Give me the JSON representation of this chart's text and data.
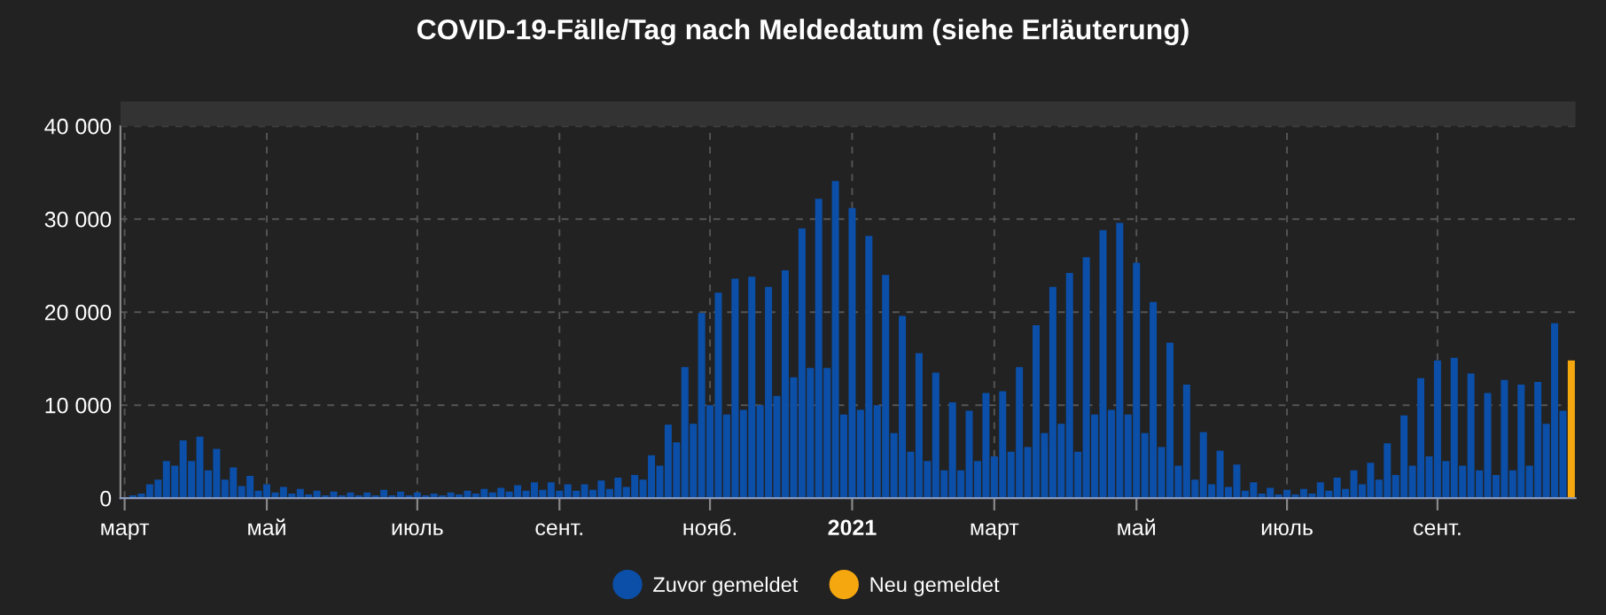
{
  "chart_data": {
    "type": "bar",
    "title": "COVID-19-Fälle/Tag nach Meldedatum (siehe Erläuterung)",
    "categories": [
      "март",
      null,
      null,
      null,
      null,
      null,
      null,
      null,
      null,
      null,
      null,
      null,
      null,
      null,
      null,
      null,
      null,
      "май",
      null,
      null,
      null,
      null,
      null,
      null,
      null,
      null,
      null,
      null,
      null,
      null,
      null,
      null,
      null,
      null,
      null,
      "июль",
      null,
      null,
      null,
      null,
      null,
      null,
      null,
      null,
      null,
      null,
      null,
      null,
      null,
      null,
      null,
      null,
      "сент.",
      null,
      null,
      null,
      null,
      null,
      null,
      null,
      null,
      null,
      null,
      null,
      null,
      null,
      null,
      null,
      null,
      null,
      "нояб.",
      null,
      null,
      null,
      null,
      null,
      null,
      null,
      null,
      null,
      null,
      null,
      null,
      null,
      null,
      null,
      null,
      "2021",
      null,
      null,
      null,
      null,
      null,
      null,
      null,
      null,
      null,
      null,
      null,
      null,
      null,
      null,
      null,
      null,
      "март",
      null,
      null,
      null,
      null,
      null,
      null,
      null,
      null,
      null,
      null,
      null,
      null,
      null,
      null,
      null,
      null,
      "май",
      null,
      null,
      null,
      null,
      null,
      null,
      null,
      null,
      null,
      null,
      null,
      null,
      null,
      null,
      null,
      null,
      null,
      "июль",
      null,
      null,
      null,
      null,
      null,
      null,
      null,
      null,
      null,
      null,
      null,
      null,
      null,
      null,
      null,
      null,
      null,
      "сент.",
      null,
      null,
      null,
      null,
      null,
      null,
      null,
      null,
      null,
      null,
      null,
      null,
      null,
      null,
      null,
      null
    ],
    "ylim": [
      0,
      40000
    ],
    "yticks": [
      0,
      {
        "value": 10000,
        "label": "10 000"
      },
      {
        "value": 20000,
        "label": "20 000"
      },
      {
        "value": 30000,
        "label": "30 000"
      },
      {
        "value": 40000,
        "label": "40 000"
      }
    ],
    "grid": true,
    "legend": "bottom",
    "series": [
      {
        "name": "Zuvor gemeldet",
        "color": "#0b4fa8",
        "values": [
          100,
          300,
          500,
          1500,
          2000,
          4000,
          3500,
          6200,
          4000,
          6600,
          3000,
          5300,
          2000,
          3300,
          1300,
          2400,
          800,
          1500,
          600,
          1200,
          500,
          1000,
          400,
          800,
          300,
          700,
          300,
          600,
          300,
          600,
          300,
          900,
          300,
          700,
          300,
          600,
          300,
          500,
          300,
          600,
          400,
          800,
          500,
          1000,
          600,
          1100,
          700,
          1400,
          800,
          1700,
          900,
          1700,
          800,
          1500,
          800,
          1500,
          900,
          1900,
          1000,
          2200,
          1200,
          2500,
          2000,
          4600,
          3500,
          7900,
          6000,
          14100,
          8000,
          19900,
          10000,
          22100,
          9000,
          23600,
          9500,
          23800,
          10000,
          22700,
          11000,
          24500,
          13000,
          29000,
          14000,
          32200,
          14000,
          34100,
          9000,
          31200,
          9500,
          28200,
          10000,
          24000,
          7000,
          19600,
          5000,
          15600,
          4000,
          13500,
          3000,
          10300,
          3000,
          9400,
          4000,
          11300,
          4500,
          11500,
          5000,
          14100,
          5500,
          18600,
          7000,
          22700,
          8000,
          24200,
          5000,
          25900,
          9000,
          28800,
          9500,
          29600,
          9000,
          25300,
          7000,
          21100,
          5500,
          16700,
          3500,
          12200,
          2000,
          7100,
          1500,
          5100,
          1200,
          3600,
          800,
          1700,
          500,
          1100,
          400,
          900,
          400,
          1000,
          500,
          1700,
          800,
          2200,
          1000,
          3000,
          1500,
          3800,
          2000,
          5900,
          2500,
          8900,
          3500,
          12900,
          4500,
          14800,
          4000,
          15100,
          3500,
          13400,
          3000,
          11300,
          2500,
          12700,
          3000,
          12200,
          3500,
          12500,
          8000,
          18800,
          9400,
          null
        ]
      },
      {
        "name": "Neu gemeldet",
        "color": "#f5a70f",
        "values": [
          null,
          null,
          null,
          null,
          null,
          null,
          null,
          null,
          null,
          null,
          null,
          null,
          null,
          null,
          null,
          null,
          null,
          null,
          null,
          null,
          null,
          null,
          null,
          null,
          null,
          null,
          null,
          null,
          null,
          null,
          null,
          null,
          null,
          null,
          null,
          null,
          null,
          null,
          null,
          null,
          null,
          null,
          null,
          null,
          null,
          null,
          null,
          null,
          null,
          null,
          null,
          null,
          null,
          null,
          null,
          null,
          null,
          null,
          null,
          null,
          null,
          null,
          null,
          null,
          null,
          null,
          null,
          null,
          null,
          null,
          null,
          null,
          null,
          null,
          null,
          null,
          null,
          null,
          null,
          null,
          null,
          null,
          null,
          null,
          null,
          null,
          null,
          null,
          null,
          null,
          null,
          null,
          null,
          null,
          null,
          null,
          null,
          null,
          null,
          null,
          null,
          null,
          null,
          null,
          null,
          null,
          null,
          null,
          null,
          null,
          null,
          null,
          null,
          null,
          null,
          null,
          null,
          null,
          null,
          null,
          null,
          null,
          null,
          null,
          null,
          null,
          null,
          null,
          null,
          null,
          null,
          null,
          null,
          null,
          null,
          null,
          null,
          null,
          null,
          null,
          null,
          null,
          null,
          null,
          null,
          null,
          null,
          null,
          null,
          null,
          null,
          null,
          null,
          null,
          null,
          null,
          null,
          null,
          null,
          null,
          null,
          null,
          null,
          null,
          null,
          null,
          null,
          null,
          null,
          null,
          null,
          null,
          null,
          14800
        ]
      }
    ]
  }
}
